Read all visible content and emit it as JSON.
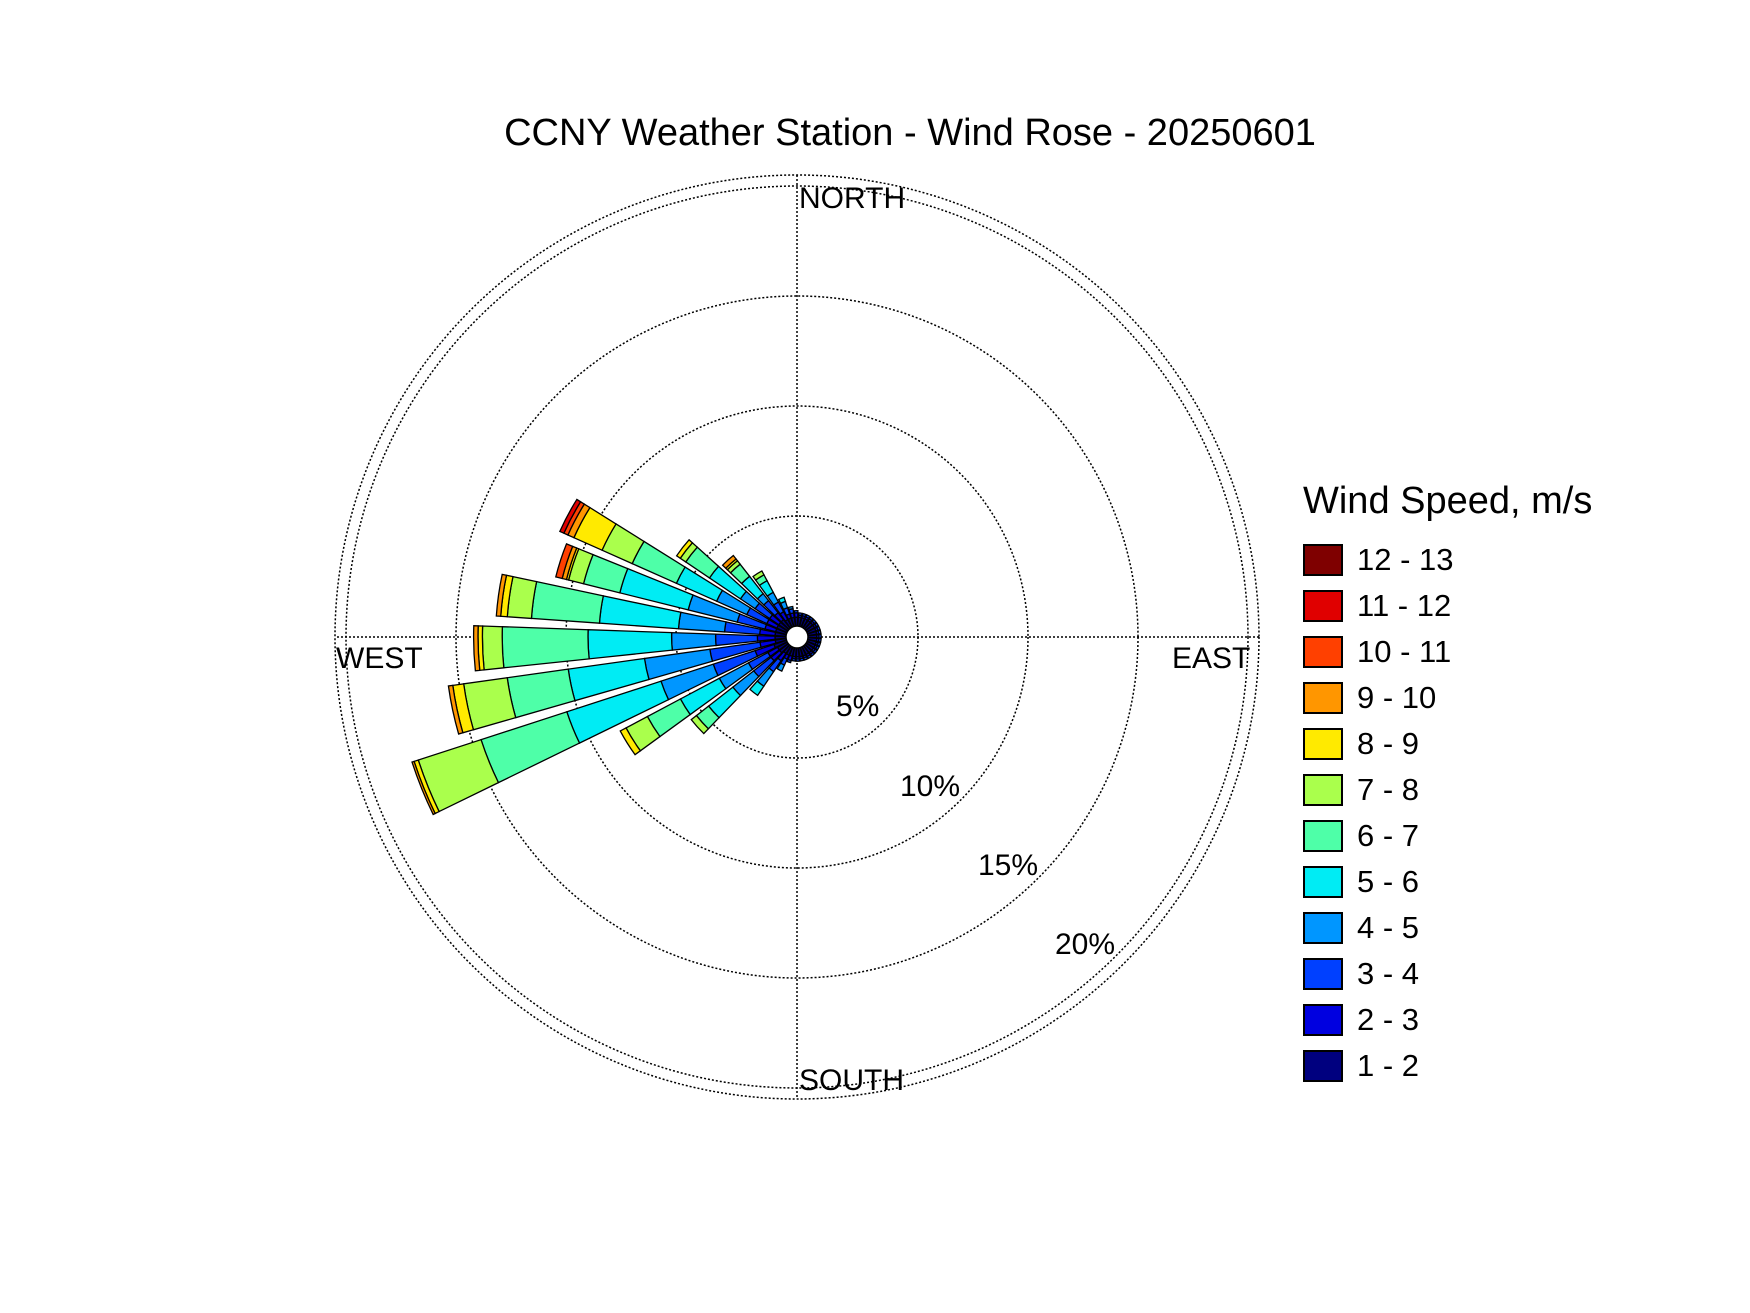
{
  "chart_data": {
    "type": "windrose",
    "title": "CCNY Weather Station - Wind Rose - 20250601",
    "direction_labels": {
      "north": "NORTH",
      "east": "EAST",
      "south": "SOUTH",
      "west": "WEST"
    },
    "radial_ticks": [
      {
        "value": 5,
        "label": "5%"
      },
      {
        "value": 10,
        "label": "10%"
      },
      {
        "value": 15,
        "label": "15%"
      },
      {
        "value": 20,
        "label": "20%"
      }
    ],
    "rmax": 20.5,
    "legend_title": "Wind Speed, m/s",
    "bins": [
      {
        "label": "1 - 2",
        "color": "#00007f"
      },
      {
        "label": "2 - 3",
        "color": "#0000e0"
      },
      {
        "label": "3 - 4",
        "color": "#0040ff"
      },
      {
        "label": "4 - 5",
        "color": "#0096ff"
      },
      {
        "label": "5 - 6",
        "color": "#00ecf4"
      },
      {
        "label": "6 - 7",
        "color": "#4effa8"
      },
      {
        "label": "7 - 8",
        "color": "#aaff4c"
      },
      {
        "label": "8 - 9",
        "color": "#ffea00"
      },
      {
        "label": "9 - 10",
        "color": "#ff9600"
      },
      {
        "label": "10 - 11",
        "color": "#ff4000"
      },
      {
        "label": "11 - 12",
        "color": "#e00000"
      },
      {
        "label": "12 - 13",
        "color": "#7f0000"
      }
    ],
    "sector_width_deg": 8,
    "sectors": [
      {
        "direction_deg": 248,
        "cumulative_pct": [
          0.6,
          1.5,
          3.5,
          6.0,
          10.5,
          14.6,
          17.6,
          17.8,
          17.9
        ]
      },
      {
        "direction_deg": 258,
        "cumulative_pct": [
          0.5,
          1.2,
          3.5,
          6.5,
          10.0,
          12.8,
          14.8,
          15.3,
          15.5
        ]
      },
      {
        "direction_deg": 268,
        "cumulative_pct": [
          0.5,
          1.3,
          3.2,
          5.2,
          9.0,
          12.9,
          13.8,
          14.0,
          14.2
        ]
      },
      {
        "direction_deg": 278,
        "cumulative_pct": [
          0.5,
          1.2,
          2.8,
          4.9,
          8.5,
          11.6,
          12.7,
          13.0,
          13.2
        ]
      },
      {
        "direction_deg": 288,
        "cumulative_pct": [
          0.5,
          1.0,
          2.3,
          4.6,
          7.8,
          9.5,
          10.2,
          10.3,
          10.5,
          10.8
        ]
      },
      {
        "direction_deg": 298,
        "cumulative_pct": [
          0.5,
          1.0,
          2.0,
          3.5,
          5.5,
          7.7,
          9.2,
          10.6,
          10.9,
          11.1,
          11.3
        ]
      },
      {
        "direction_deg": 308,
        "cumulative_pct": [
          0.5,
          1.0,
          1.8,
          2.6,
          4.3,
          5.6,
          5.9,
          6.1
        ]
      },
      {
        "direction_deg": 318,
        "cumulative_pct": [
          0.5,
          0.9,
          1.6,
          2.0,
          3.0,
          3.7,
          3.9,
          4.0,
          4.2
        ]
      },
      {
        "direction_deg": 328,
        "cumulative_pct": [
          0.4,
          0.8,
          1.3,
          1.8,
          2.4,
          2.7,
          2.9
        ]
      },
      {
        "direction_deg": 338,
        "cumulative_pct": [
          0.4,
          0.6,
          0.9,
          1.2,
          1.4
        ]
      },
      {
        "direction_deg": 348,
        "cumulative_pct": [
          0.4,
          0.6,
          0.8,
          0.9
        ]
      },
      {
        "direction_deg": 358,
        "cumulative_pct": [
          0.4,
          0.6,
          0.7
        ]
      },
      {
        "direction_deg": 8,
        "cumulative_pct": [
          0.4,
          0.5,
          0.6
        ]
      },
      {
        "direction_deg": 18,
        "cumulative_pct": [
          0.4,
          0.5,
          0.6
        ]
      },
      {
        "direction_deg": 28,
        "cumulative_pct": [
          0.4,
          0.5,
          0.6
        ]
      },
      {
        "direction_deg": 38,
        "cumulative_pct": [
          0.4,
          0.5,
          0.6
        ]
      },
      {
        "direction_deg": 48,
        "cumulative_pct": [
          0.4,
          0.5,
          0.6
        ]
      },
      {
        "direction_deg": 58,
        "cumulative_pct": [
          0.4,
          0.5,
          0.6
        ]
      },
      {
        "direction_deg": 68,
        "cumulative_pct": [
          0.4,
          0.5,
          0.6
        ]
      },
      {
        "direction_deg": 78,
        "cumulative_pct": [
          0.4,
          0.5,
          0.6
        ]
      },
      {
        "direction_deg": 88,
        "cumulative_pct": [
          0.4,
          0.5,
          0.6
        ]
      },
      {
        "direction_deg": 98,
        "cumulative_pct": [
          0.4,
          0.5,
          0.6
        ]
      },
      {
        "direction_deg": 108,
        "cumulative_pct": [
          0.4,
          0.5,
          0.6
        ]
      },
      {
        "direction_deg": 118,
        "cumulative_pct": [
          0.4,
          0.5,
          0.6
        ]
      },
      {
        "direction_deg": 128,
        "cumulative_pct": [
          0.4,
          0.5,
          0.6
        ]
      },
      {
        "direction_deg": 138,
        "cumulative_pct": [
          0.4,
          0.5,
          0.6
        ]
      },
      {
        "direction_deg": 148,
        "cumulative_pct": [
          0.4,
          0.5,
          0.6
        ]
      },
      {
        "direction_deg": 158,
        "cumulative_pct": [
          0.4,
          0.5,
          0.6
        ]
      },
      {
        "direction_deg": 168,
        "cumulative_pct": [
          0.4,
          0.5,
          0.6
        ]
      },
      {
        "direction_deg": 178,
        "cumulative_pct": [
          0.4,
          0.5,
          0.6
        ]
      },
      {
        "direction_deg": 188,
        "cumulative_pct": [
          0.4,
          0.5,
          0.6
        ]
      },
      {
        "direction_deg": 198,
        "cumulative_pct": [
          0.4,
          0.6,
          0.7
        ]
      },
      {
        "direction_deg": 208,
        "cumulative_pct": [
          0.4,
          0.6,
          0.9,
          1.2
        ]
      },
      {
        "direction_deg": 218,
        "cumulative_pct": [
          0.4,
          0.8,
          1.4,
          2.2,
          2.7
        ]
      },
      {
        "direction_deg": 228,
        "cumulative_pct": [
          0.5,
          1.0,
          2.0,
          3.2,
          4.6,
          5.3,
          5.6
        ]
      },
      {
        "direction_deg": 238,
        "cumulative_pct": [
          0.5,
          1.0,
          2.0,
          3.5,
          5.5,
          7.2,
          8.3,
          8.6
        ]
      }
    ]
  }
}
